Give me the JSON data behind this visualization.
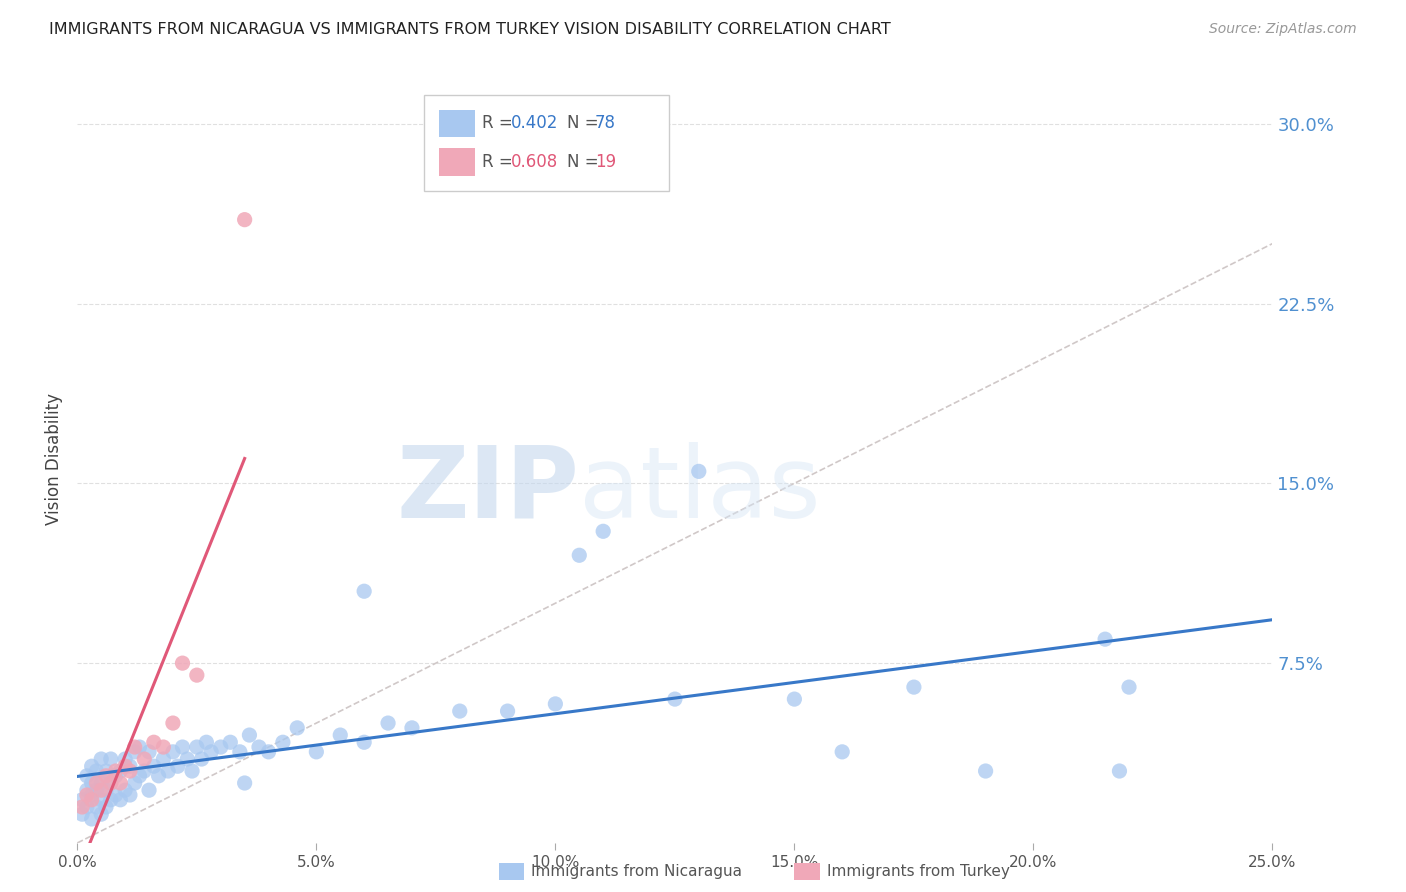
{
  "title": "IMMIGRANTS FROM NICARAGUA VS IMMIGRANTS FROM TURKEY VISION DISABILITY CORRELATION CHART",
  "source": "Source: ZipAtlas.com",
  "ylabel": "Vision Disability",
  "xlim": [
    0.0,
    0.25
  ],
  "ylim": [
    0.0,
    0.32
  ],
  "xticks": [
    0.0,
    0.05,
    0.1,
    0.15,
    0.2,
    0.25
  ],
  "yticks_right": [
    0.075,
    0.15,
    0.225,
    0.3
  ],
  "ytick_labels_right": [
    "7.5%",
    "15.0%",
    "22.5%",
    "30.0%"
  ],
  "xtick_labels": [
    "0.0%",
    "5.0%",
    "10.0%",
    "15.0%",
    "20.0%",
    "25.0%"
  ],
  "nicaragua_color": "#a8c8f0",
  "turkey_color": "#f0a8b8",
  "nicaragua_R": 0.402,
  "nicaragua_N": 78,
  "turkey_R": 0.608,
  "turkey_N": 19,
  "nicaragua_label": "Immigrants from Nicaragua",
  "turkey_label": "Immigrants from Turkey",
  "watermark_zip": "ZIP",
  "watermark_atlas": "atlas",
  "background_color": "#ffffff",
  "grid_color": "#e0e0e0",
  "nicaragua_trend_color": "#3878c8",
  "turkey_trend_color": "#e05878",
  "ref_line_color": "#d0c8c8",
  "title_color": "#222222",
  "right_label_color": "#5090d0",
  "nicaragua_scatter_x": [
    0.001,
    0.001,
    0.002,
    0.002,
    0.002,
    0.003,
    0.003,
    0.003,
    0.003,
    0.004,
    0.004,
    0.004,
    0.005,
    0.005,
    0.005,
    0.005,
    0.006,
    0.006,
    0.006,
    0.007,
    0.007,
    0.007,
    0.008,
    0.008,
    0.009,
    0.009,
    0.01,
    0.01,
    0.011,
    0.011,
    0.012,
    0.012,
    0.013,
    0.013,
    0.014,
    0.015,
    0.015,
    0.016,
    0.017,
    0.018,
    0.019,
    0.02,
    0.021,
    0.022,
    0.023,
    0.024,
    0.025,
    0.026,
    0.027,
    0.028,
    0.03,
    0.032,
    0.034,
    0.036,
    0.038,
    0.04,
    0.043,
    0.046,
    0.05,
    0.055,
    0.06,
    0.065,
    0.07,
    0.08,
    0.09,
    0.1,
    0.105,
    0.11,
    0.125,
    0.13,
    0.15,
    0.16,
    0.175,
    0.19,
    0.215,
    0.218,
    0.22,
    0.06,
    0.035
  ],
  "nicaragua_scatter_y": [
    0.012,
    0.018,
    0.015,
    0.022,
    0.028,
    0.01,
    0.02,
    0.025,
    0.032,
    0.015,
    0.022,
    0.03,
    0.012,
    0.018,
    0.025,
    0.035,
    0.015,
    0.022,
    0.03,
    0.018,
    0.025,
    0.035,
    0.02,
    0.028,
    0.018,
    0.03,
    0.022,
    0.035,
    0.02,
    0.032,
    0.025,
    0.038,
    0.028,
    0.04,
    0.03,
    0.022,
    0.038,
    0.032,
    0.028,
    0.035,
    0.03,
    0.038,
    0.032,
    0.04,
    0.035,
    0.03,
    0.04,
    0.035,
    0.042,
    0.038,
    0.04,
    0.042,
    0.038,
    0.045,
    0.04,
    0.038,
    0.042,
    0.048,
    0.038,
    0.045,
    0.042,
    0.05,
    0.048,
    0.055,
    0.055,
    0.058,
    0.12,
    0.13,
    0.06,
    0.155,
    0.06,
    0.038,
    0.065,
    0.03,
    0.085,
    0.03,
    0.065,
    0.105,
    0.025
  ],
  "turkey_scatter_x": [
    0.001,
    0.002,
    0.003,
    0.004,
    0.005,
    0.006,
    0.007,
    0.008,
    0.009,
    0.01,
    0.011,
    0.012,
    0.014,
    0.016,
    0.018,
    0.02,
    0.022,
    0.025,
    0.035
  ],
  "turkey_scatter_y": [
    0.015,
    0.02,
    0.018,
    0.025,
    0.022,
    0.028,
    0.025,
    0.03,
    0.025,
    0.032,
    0.03,
    0.04,
    0.035,
    0.042,
    0.04,
    0.05,
    0.075,
    0.07,
    0.26
  ]
}
